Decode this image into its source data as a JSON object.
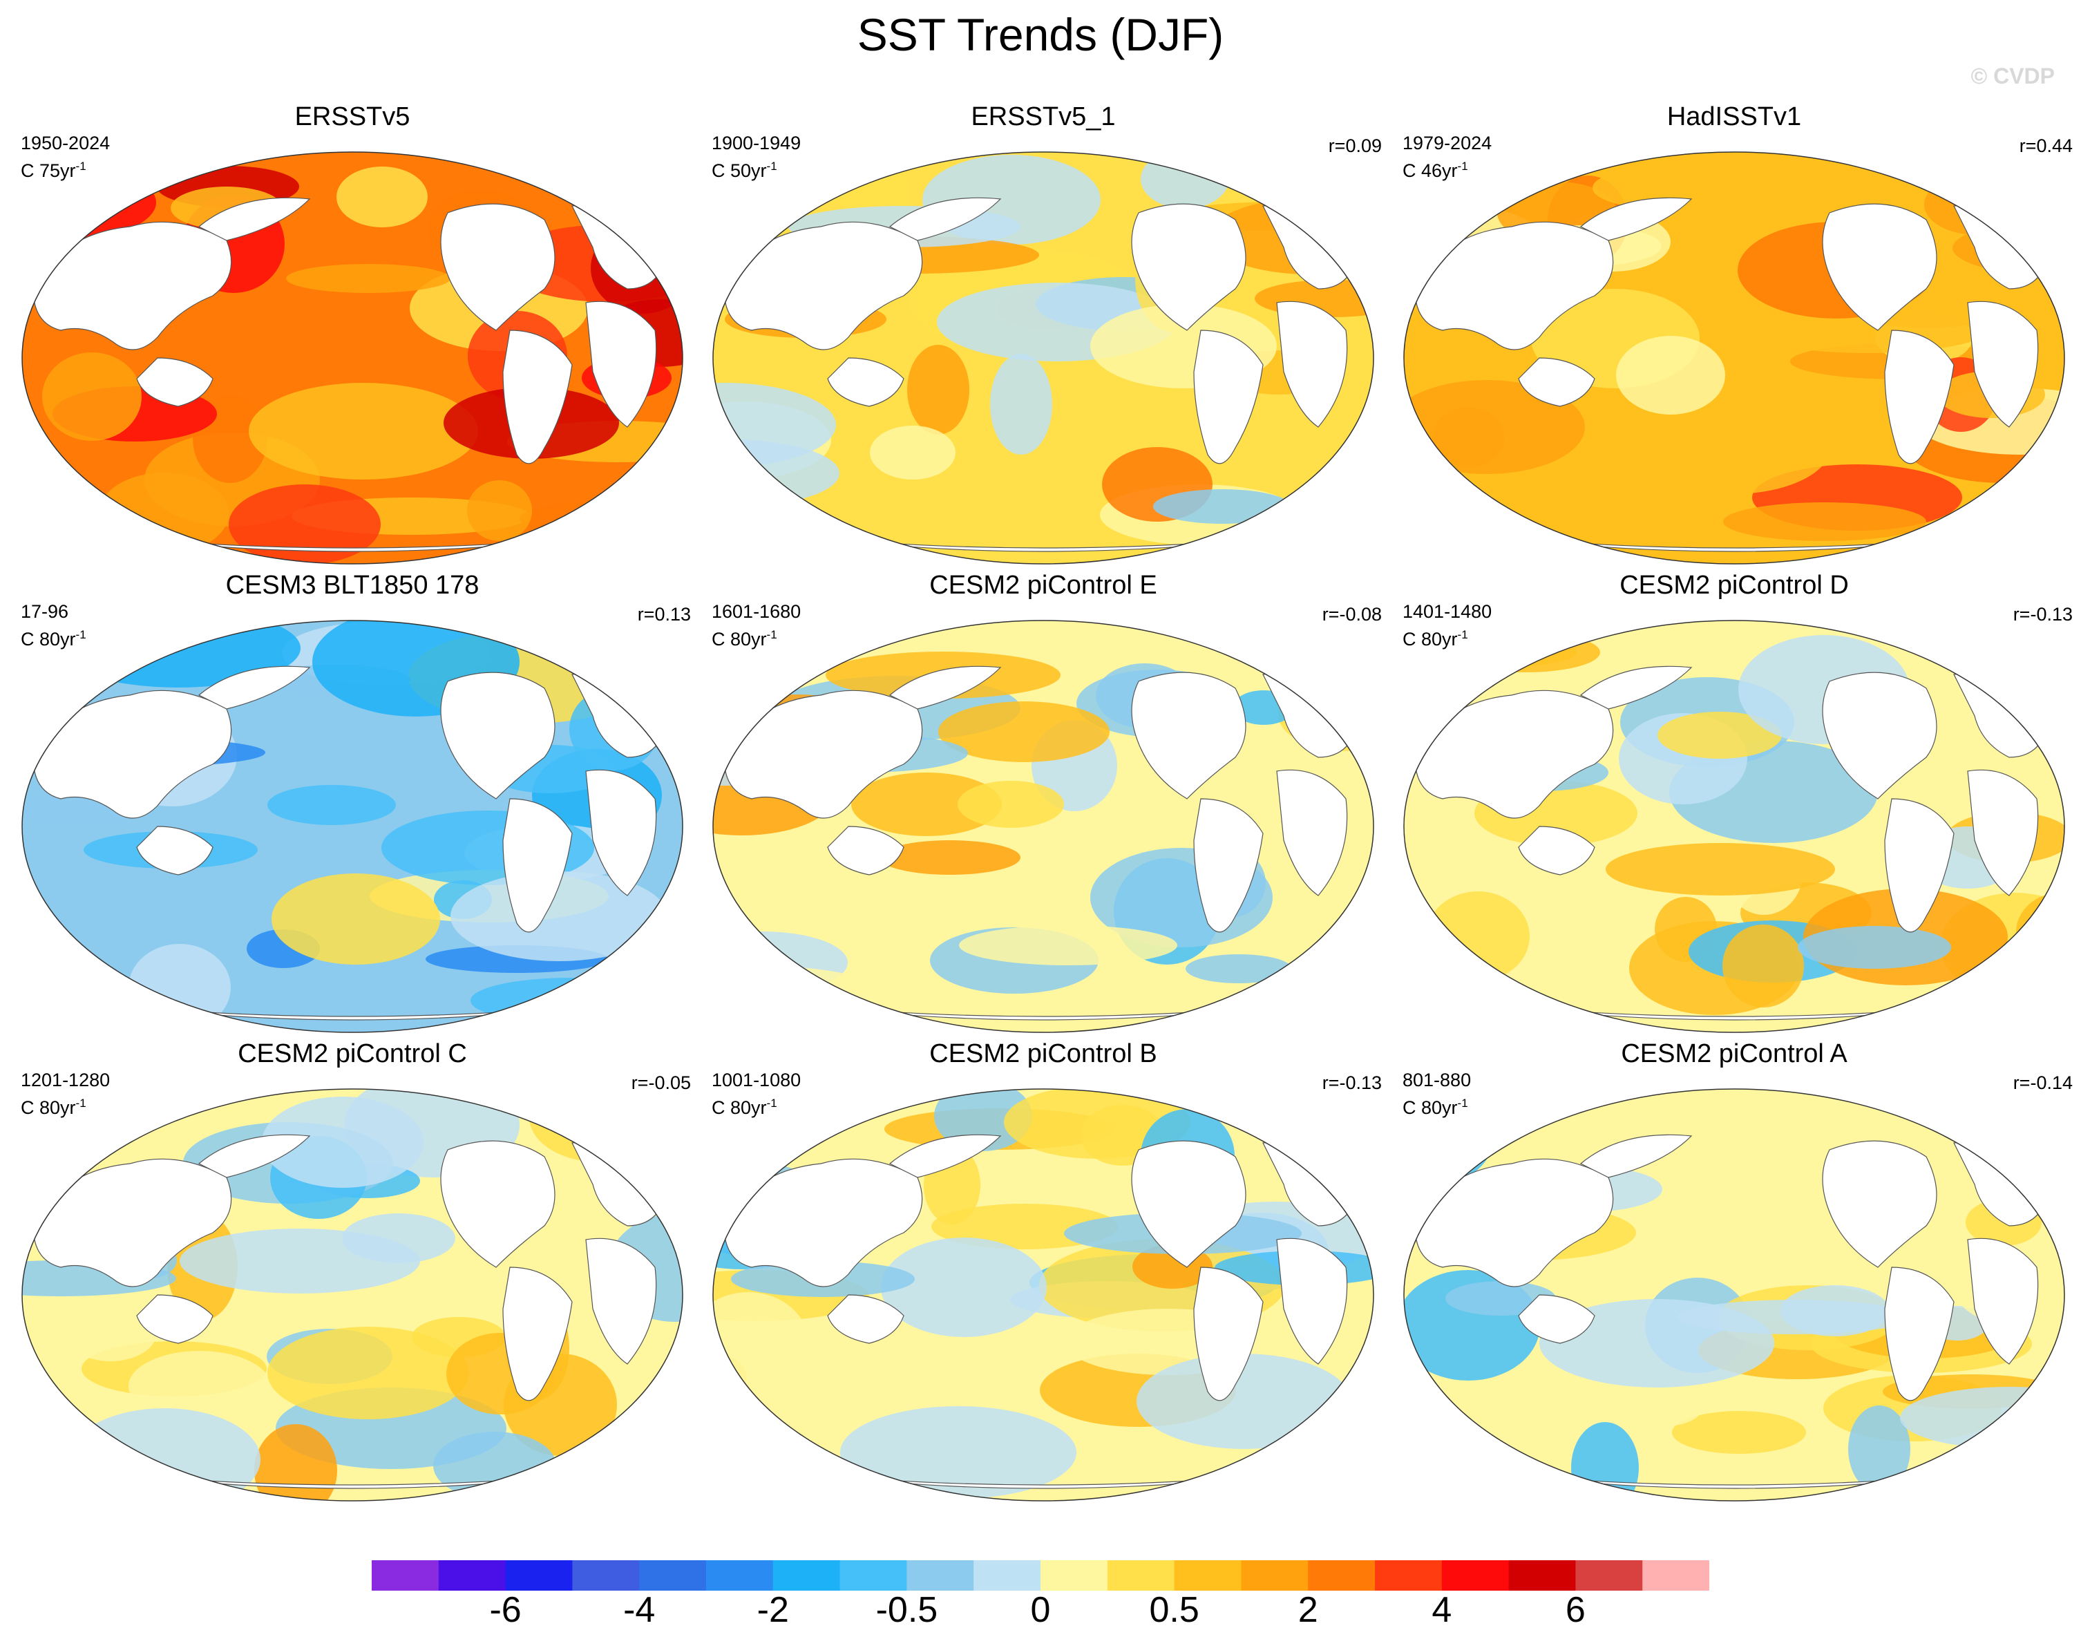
{
  "figure": {
    "title": "SST Trends (DJF)",
    "watermark": "© CVDP"
  },
  "panels": [
    {
      "title": "ERSSTv5",
      "period": "1950-2024",
      "trend_scale": "C 75yr",
      "trend_exp": "-1",
      "correlation": "",
      "mean_anomaly": 2.0,
      "palette_note": "warm"
    },
    {
      "title": "ERSSTv5_1",
      "period": "1900-1949",
      "trend_scale": "C 50yr",
      "trend_exp": "-1",
      "correlation": "r=0.09",
      "mean_anomaly": 0.6,
      "palette_note": "mixed-warm"
    },
    {
      "title": "HadISSTv1",
      "period": "1979-2024",
      "trend_scale": "C 46yr",
      "trend_exp": "-1",
      "correlation": "r=0.44",
      "mean_anomaly": 1.2,
      "palette_note": "warm"
    },
    {
      "title": "CESM3 BLT1850 178",
      "period": "17-96",
      "trend_scale": "C 80yr",
      "trend_exp": "-1",
      "correlation": "r=0.13",
      "mean_anomaly": -1.0,
      "palette_note": "cold"
    },
    {
      "title": "CESM2 piControl E",
      "period": "1601-1680",
      "trend_scale": "C 80yr",
      "trend_exp": "-1",
      "correlation": "r=-0.08",
      "mean_anomaly": 0.0,
      "palette_note": "neutral"
    },
    {
      "title": "CESM2 piControl D",
      "period": "1401-1480",
      "trend_scale": "C 80yr",
      "trend_exp": "-1",
      "correlation": "r=-0.13",
      "mean_anomaly": -0.1,
      "palette_note": "neutral"
    },
    {
      "title": "CESM2 piControl C",
      "period": "1201-1280",
      "trend_scale": "C 80yr",
      "trend_exp": "-1",
      "correlation": "r=-0.05",
      "mean_anomaly": 0.0,
      "palette_note": "neutral"
    },
    {
      "title": "CESM2 piControl B",
      "period": "1001-1080",
      "trend_scale": "C 80yr",
      "trend_exp": "-1",
      "correlation": "r=-0.13",
      "mean_anomaly": 0.0,
      "palette_note": "neutral"
    },
    {
      "title": "CESM2 piControl A",
      "period": "801-880",
      "trend_scale": "C 80yr",
      "trend_exp": "-1",
      "correlation": "r=-0.14",
      "mean_anomaly": -0.1,
      "palette_note": "neutral"
    }
  ],
  "colorbar": {
    "colors": [
      "#8a2be2",
      "#4b0fe8",
      "#1a22f0",
      "#3f5de0",
      "#2f72e8",
      "#2a8cf2",
      "#1db2f7",
      "#46c0f8",
      "#8ccbee",
      "#bfe1f4",
      "#fff7a0",
      "#ffe04a",
      "#ffc01e",
      "#ffa20e",
      "#ff7a06",
      "#ff3c10",
      "#ff0a0a",
      "#d20000",
      "#d94040",
      "#ffb0b0"
    ],
    "labels": [
      {
        "text": "-6",
        "boundary": 2
      },
      {
        "text": "-4",
        "boundary": 4
      },
      {
        "text": "-2",
        "boundary": 6
      },
      {
        "text": "-0.5",
        "boundary": 8
      },
      {
        "text": "0",
        "boundary": 10
      },
      {
        "text": "0.5",
        "boundary": 12
      },
      {
        "text": "2",
        "boundary": 14
      },
      {
        "text": "4",
        "boundary": 16
      },
      {
        "text": "6",
        "boundary": 18
      }
    ]
  }
}
